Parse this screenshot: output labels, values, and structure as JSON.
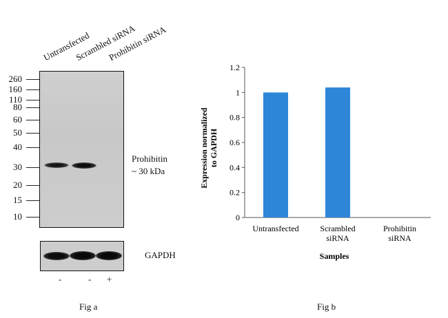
{
  "figure_a": {
    "lane_labels": [
      "Untransfected",
      "Scrambled siRNA",
      "Prohibitin siRNA"
    ],
    "mw_markers": [
      "260",
      "160",
      "110",
      "80",
      "60",
      "50",
      "40",
      "30",
      "20",
      "15",
      "10"
    ],
    "band_label_line1": "Prohibitin",
    "band_label_line2": "~ 30 kDa",
    "loading_control_label": "GAPDH",
    "transfection_signs": [
      "-",
      "-",
      "+"
    ],
    "caption": "Fig a"
  },
  "figure_b": {
    "caption": "Fig b"
  },
  "chart_data": {
    "type": "bar",
    "categories": [
      "Untransfected",
      "Scrambled siRNA",
      "Prohibitin siRNA"
    ],
    "category_lines": [
      [
        "Untransfected"
      ],
      [
        "Scrambled",
        "siRNA"
      ],
      [
        "Prohibitin",
        "siRNA"
      ]
    ],
    "values": [
      1.0,
      1.04,
      0.0
    ],
    "xlabel": "Samples",
    "ylabel_line1": "Expression normalized",
    "ylabel_line2": "to GAPDH",
    "ylim": [
      0,
      1.2
    ],
    "yticks": [
      "0",
      "0.2",
      "0.4",
      "0.6",
      "0.8",
      "1",
      "1.2"
    ],
    "bar_color": "#2E86D9",
    "grid": false
  }
}
